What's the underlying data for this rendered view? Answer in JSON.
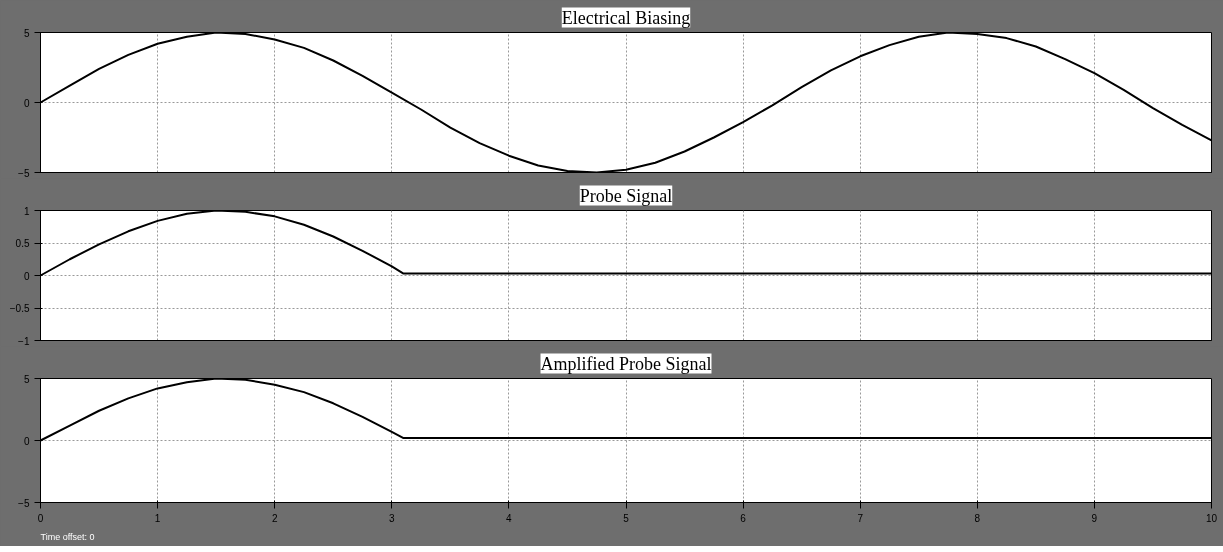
{
  "chart_data": [
    {
      "type": "line",
      "title": "Electrical Biasing",
      "x": [
        0,
        0.25,
        0.5,
        0.75,
        1,
        1.25,
        1.5,
        1.75,
        2,
        2.25,
        2.5,
        2.75,
        3,
        3.25,
        3.5,
        3.75,
        4,
        4.25,
        4.5,
        4.75,
        5,
        5.25,
        5.5,
        5.75,
        6,
        6.25,
        6.5,
        6.75,
        7,
        7.25,
        7.5,
        7.75,
        8,
        8.25,
        8.5,
        8.75,
        9,
        9.25,
        9.5,
        9.75,
        10
      ],
      "series": [
        {
          "color": "#000000",
          "values": [
            0,
            1.2,
            2.4,
            3.4,
            4.2,
            4.7,
            5.0,
            4.9,
            4.5,
            3.9,
            3.0,
            1.9,
            0.7,
            -0.5,
            -1.8,
            -2.9,
            -3.8,
            -4.5,
            -4.9,
            -5.0,
            -4.8,
            -4.3,
            -3.5,
            -2.5,
            -1.4,
            -0.2,
            1.1,
            2.3,
            3.3,
            4.1,
            4.7,
            5.0,
            4.9,
            4.6,
            4.0,
            3.1,
            2.1,
            0.9,
            -0.4,
            -1.6,
            -2.7
          ]
        }
      ],
      "xlim": [
        0,
        10
      ],
      "xticks": [
        0,
        1,
        2,
        3,
        4,
        5,
        6,
        7,
        8,
        9,
        10
      ],
      "ylim": [
        -5,
        5
      ],
      "yticks": [
        -5,
        0,
        5
      ],
      "grid": true,
      "tick_labels": "y",
      "marker": "none",
      "line_style": "solid"
    },
    {
      "type": "line",
      "title": "Probe Signal",
      "x": [
        0,
        0.25,
        0.5,
        0.75,
        1,
        1.25,
        1.5,
        1.75,
        2,
        2.25,
        2.5,
        2.75,
        3,
        3.1,
        10
      ],
      "series": [
        {
          "color": "#000000",
          "values": [
            0,
            0.25,
            0.48,
            0.68,
            0.84,
            0.95,
            1.0,
            0.98,
            0.91,
            0.78,
            0.6,
            0.38,
            0.14,
            0.03,
            0.03
          ]
        }
      ],
      "xlim": [
        0,
        10
      ],
      "xticks": [
        0,
        1,
        2,
        3,
        4,
        5,
        6,
        7,
        8,
        9,
        10
      ],
      "ylim": [
        -1,
        1
      ],
      "yticks": [
        -1,
        -0.5,
        0,
        0.5,
        1
      ],
      "grid": true,
      "tick_labels": "y",
      "marker": "none",
      "line_style": "solid"
    },
    {
      "type": "line",
      "title": "Amplified Probe Signal",
      "x": [
        0,
        0.25,
        0.5,
        0.75,
        1,
        1.25,
        1.5,
        1.75,
        2,
        2.25,
        2.5,
        2.75,
        3,
        3.1,
        10
      ],
      "series": [
        {
          "color": "#000000",
          "values": [
            0,
            1.2,
            2.4,
            3.4,
            4.2,
            4.7,
            5.0,
            4.9,
            4.5,
            3.9,
            3.0,
            1.9,
            0.7,
            0.2,
            0.2
          ]
        }
      ],
      "xlim": [
        0,
        10
      ],
      "xticks": [
        0,
        1,
        2,
        3,
        4,
        5,
        6,
        7,
        8,
        9,
        10
      ],
      "ylim": [
        -5,
        5
      ],
      "yticks": [
        -5,
        0,
        5
      ],
      "grid": true,
      "marker": "none",
      "line_style": "solid",
      "annotations": [
        "Time offset:  0"
      ]
    }
  ]
}
